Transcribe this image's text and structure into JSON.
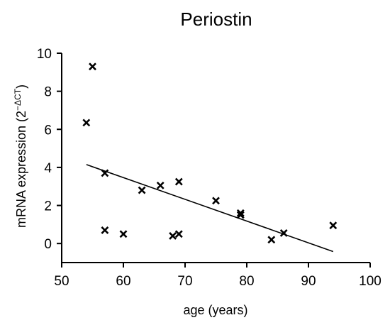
{
  "chart_data": {
    "type": "scatter",
    "title": "Periostin",
    "xlabel": "age (years)",
    "ylabel_main": "mRNA expression (2",
    "ylabel_sup": "−ΔCT",
    "ylabel_close": ")",
    "xlim": [
      50,
      100
    ],
    "ylim": [
      -1,
      10
    ],
    "xticks": [
      50,
      60,
      70,
      80,
      90,
      100
    ],
    "yticks": [
      0,
      2,
      4,
      6,
      8,
      10
    ],
    "grid": false,
    "marker": "x",
    "points": [
      {
        "x": 54,
        "y": 6.35
      },
      {
        "x": 55,
        "y": 9.3
      },
      {
        "x": 57,
        "y": 3.7
      },
      {
        "x": 57,
        "y": 0.7
      },
      {
        "x": 60,
        "y": 0.5
      },
      {
        "x": 63,
        "y": 2.8
      },
      {
        "x": 66,
        "y": 3.05
      },
      {
        "x": 68,
        "y": 0.4
      },
      {
        "x": 69,
        "y": 0.5
      },
      {
        "x": 69,
        "y": 3.25
      },
      {
        "x": 75,
        "y": 2.25
      },
      {
        "x": 79,
        "y": 1.6
      },
      {
        "x": 79,
        "y": 1.5
      },
      {
        "x": 84,
        "y": 0.2
      },
      {
        "x": 86,
        "y": 0.55
      },
      {
        "x": 94,
        "y": 0.95
      }
    ],
    "trendline": {
      "x": [
        54,
        94
      ],
      "y": [
        4.15,
        -0.42
      ]
    }
  }
}
